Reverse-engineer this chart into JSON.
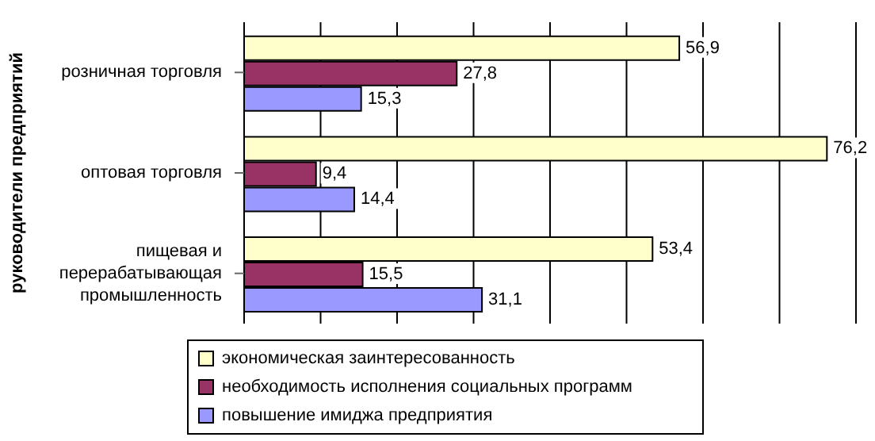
{
  "chart_data": {
    "type": "bar",
    "orientation": "horizontal",
    "ylabel": "руководители предприятий",
    "categories": [
      "розничная торговля",
      "оптовая торговля",
      "пищевая и перерабатывающая промышленность"
    ],
    "series": [
      {
        "name": "экономическая заинтересованность",
        "color": "#ffffcc",
        "values": [
          56.9,
          76.2,
          53.4
        ],
        "value_labels": [
          "56,9",
          "76,2",
          "53,4"
        ]
      },
      {
        "name": "необходимость исполнения социальных программ",
        "color": "#993366",
        "values": [
          27.8,
          9.4,
          15.5
        ],
        "value_labels": [
          "27,8",
          "9,4",
          "15,5"
        ]
      },
      {
        "name": "повышение имиджа предприятия",
        "color": "#9999ff",
        "values": [
          15.3,
          14.4,
          31.1
        ],
        "value_labels": [
          "15,3",
          "14,4",
          "31,1"
        ]
      }
    ],
    "tick_labels": "y",
    "grid": "x",
    "legend": "bottom"
  }
}
